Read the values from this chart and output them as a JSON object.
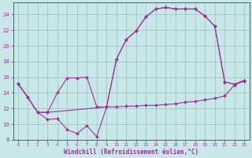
{
  "bg_color": "#c8e8e8",
  "line_color": "#993399",
  "grid_color": "#9bbcbc",
  "xlabel": "Windchill (Refroidissement éolien,°C)",
  "xlim": [
    -0.5,
    23.5
  ],
  "ylim": [
    8,
    25.5
  ],
  "xticks": [
    0,
    1,
    2,
    3,
    4,
    5,
    6,
    7,
    8,
    9,
    10,
    11,
    12,
    13,
    14,
    15,
    16,
    17,
    18,
    19,
    20,
    21,
    22,
    23
  ],
  "yticks": [
    8,
    10,
    12,
    14,
    16,
    18,
    20,
    22,
    24
  ],
  "line1_x": [
    0,
    1,
    2,
    3,
    4,
    5,
    6,
    7,
    8,
    9,
    10,
    11,
    12,
    13,
    14,
    15,
    16,
    17,
    18,
    19,
    20,
    21,
    22,
    23
  ],
  "line1_y": [
    15.2,
    13.4,
    11.5,
    10.6,
    10.7,
    9.3,
    8.8,
    9.8,
    8.4,
    12.2,
    12.2,
    12.3,
    12.3,
    12.4,
    12.4,
    12.5,
    12.6,
    12.8,
    12.9,
    13.1,
    13.3,
    13.6,
    15.0,
    15.5
  ],
  "line2_x": [
    0,
    1,
    2,
    3,
    9,
    10,
    11,
    12,
    13,
    14,
    15,
    16,
    17,
    18,
    19,
    20,
    21,
    22,
    23
  ],
  "line2_y": [
    15.2,
    13.4,
    11.5,
    11.5,
    12.2,
    18.3,
    20.8,
    21.9,
    23.7,
    24.7,
    24.9,
    24.7,
    24.7,
    24.7,
    23.8,
    22.5,
    15.4,
    15.1,
    15.6
  ],
  "line3_x": [
    0,
    1,
    2,
    3,
    4,
    5,
    6,
    7,
    8,
    9,
    10,
    11,
    12,
    13,
    14,
    15,
    16,
    17,
    18,
    19,
    20,
    21,
    22,
    23
  ],
  "line3_y": [
    15.2,
    13.4,
    11.5,
    11.5,
    14.0,
    15.9,
    15.9,
    16.0,
    12.2,
    12.2,
    18.3,
    20.8,
    21.9,
    23.7,
    24.7,
    24.9,
    24.7,
    24.7,
    24.7,
    23.8,
    22.5,
    15.4,
    15.1,
    15.6
  ]
}
